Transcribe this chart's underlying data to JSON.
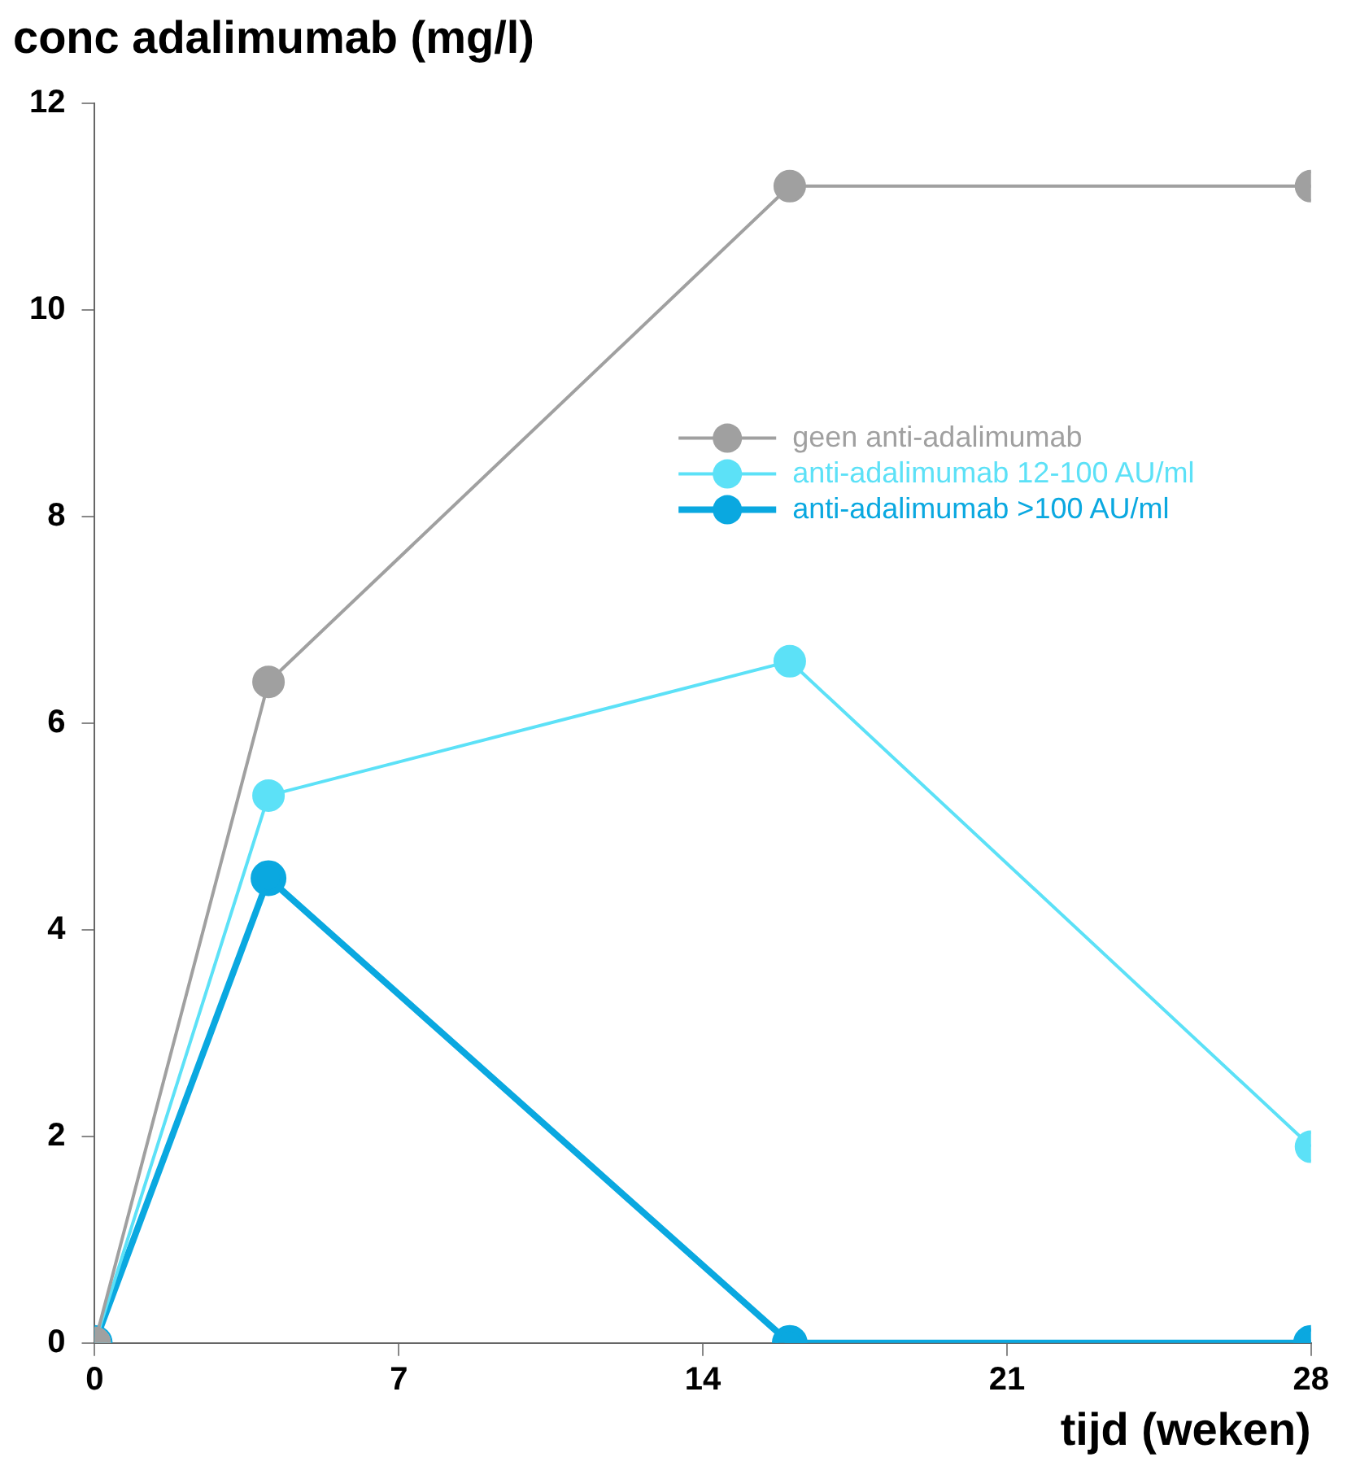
{
  "chart_data": {
    "type": "line",
    "title": "conc adalimumab (mg/l)",
    "xlabel": "tijd (weken)",
    "x": [
      0,
      4,
      16,
      28
    ],
    "series": [
      {
        "name": "geen anti-adalimumab",
        "color": "#a0a0a0",
        "values": [
          0,
          6.4,
          11.2,
          11.2
        ]
      },
      {
        "name": "anti-adalimumab 12-100 AU/ml",
        "color": "#5ce1f7",
        "values": [
          0,
          5.3,
          6.6,
          1.9
        ]
      },
      {
        "name": "anti-adalimumab >100 AU/ml",
        "color": "#0aa8e0",
        "values": [
          0,
          4.5,
          0,
          0
        ]
      }
    ],
    "xlim": [
      0,
      28
    ],
    "xticks": [
      0,
      7,
      14,
      21,
      28
    ],
    "ylim": [
      0,
      12
    ],
    "yticks": [
      0,
      2,
      4,
      6,
      8,
      10,
      12
    ],
    "grid": false,
    "legend": "top right",
    "marker": "circle",
    "line_style": "solid"
  }
}
